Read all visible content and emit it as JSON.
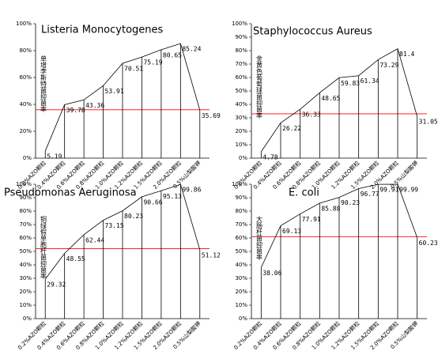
{
  "chart_data": [
    {
      "type": "line",
      "title": "Listeria Monocytogenes",
      "title_color": "#ff0000",
      "y_label": "单增李斯特菌抑菌率",
      "categories": [
        "0.2%AZO颗粒",
        "0.4%AZO颗粒",
        "0.6%AZO颗粒",
        "0.8%AZO颗粒",
        "1.0%AZO颗粒",
        "1.2%AZO颗粒",
        "1.5%AZO颗粒",
        "2.0%AZO颗粒",
        "0.5%山梨酸钾"
      ],
      "values": [
        5.19,
        39.78,
        43.36,
        53.91,
        70.51,
        75.19,
        80.65,
        85.24,
        35.69
      ],
      "color": "#000000",
      "reference_value": 36,
      "reference_color": "#ff0000",
      "ylim": [
        0,
        100
      ],
      "yticks": [
        {
          "value": 0,
          "label": "0%"
        },
        {
          "value": 20,
          "label": "20%"
        },
        {
          "value": 40,
          "label": "40%"
        },
        {
          "value": 60,
          "label": "60%"
        },
        {
          "value": 80,
          "label": "80%"
        },
        {
          "value": 100,
          "label": "100%"
        }
      ]
    },
    {
      "type": "line",
      "title": "Staphylococcus Aureus",
      "title_color": "#ff0000",
      "y_label": "金黄色葡萄球菌抑菌率",
      "categories": [
        "0.2%AZO颗粒",
        "0.4%AZO颗粒",
        "0.6%AZO颗粒",
        "0.8%AZO颗粒",
        "1.0%AZO颗粒",
        "1.2%AZO颗粒",
        "1.5%AZO颗粒",
        "2.0%AZO颗粒",
        "0.5%山梨酸钾"
      ],
      "values": [
        4.78,
        26.22,
        36.33,
        48.65,
        59.83,
        61.34,
        73.29,
        81.4,
        31.05
      ],
      "color": "#000000",
      "reference_value": 33,
      "reference_color": "#ff0000",
      "ylim": [
        0,
        100
      ],
      "yticks": [
        {
          "value": 0,
          "label": "0%"
        },
        {
          "value": 10,
          "label": "10%"
        },
        {
          "value": 20,
          "label": "20%"
        },
        {
          "value": 30,
          "label": "30%"
        },
        {
          "value": 40,
          "label": "40%"
        },
        {
          "value": 50,
          "label": "50%"
        },
        {
          "value": 60,
          "label": "60%"
        },
        {
          "value": 70,
          "label": "70%"
        },
        {
          "value": 80,
          "label": "80%"
        },
        {
          "value": 90,
          "label": "90%"
        },
        {
          "value": 100,
          "label": "100%"
        }
      ]
    },
    {
      "type": "line",
      "title": "Pseudomonas Aeruginosa",
      "title_color": "#ff0000",
      "y_label": "铜绿假单胞杆菌抑菌率",
      "categories": [
        "0.2%AZO颗粒",
        "0.4%AZO颗粒",
        "0.6%AZO颗粒",
        "0.8%AZO颗粒",
        "1.0%AZO颗粒",
        "1.2%AZO颗粒",
        "1.5%AZO颗粒",
        "2.0%AZO颗粒",
        "0.5%山梨酸钾"
      ],
      "values": [
        29.32,
        48.55,
        62.44,
        73.15,
        80.23,
        90.66,
        95.13,
        99.86,
        51.12
      ],
      "color": "#000000",
      "reference_value": 52,
      "reference_color": "#ff0000",
      "ylim": [
        0,
        100
      ],
      "yticks": [
        {
          "value": 0,
          "label": "0%"
        },
        {
          "value": 10,
          "label": "10%"
        },
        {
          "value": 20,
          "label": "20%"
        },
        {
          "value": 30,
          "label": "30%"
        },
        {
          "value": 40,
          "label": "40%"
        },
        {
          "value": 50,
          "label": "50%"
        },
        {
          "value": 60,
          "label": "60%"
        },
        {
          "value": 70,
          "label": "70%"
        },
        {
          "value": 80,
          "label": "80%"
        },
        {
          "value": 90,
          "label": "90%"
        },
        {
          "value": 100,
          "label": "100%"
        }
      ]
    },
    {
      "type": "line",
      "title": "E. coli",
      "title_color": "#ff0000",
      "y_label": "大肠杆菌抑菌率",
      "categories": [
        "0.2%AZO颗粒",
        "0.4%AZO颗粒",
        "0.6%AZO颗粒",
        "0.8%AZO颗粒",
        "1.0%AZO颗粒",
        "1.2%AZO颗粒",
        "1.5%AZO颗粒",
        "2.0%AZO颗粒",
        "0.5%山梨酸钾"
      ],
      "values": [
        38.06,
        69.13,
        77.91,
        85.88,
        90.23,
        96.77,
        99.91,
        99.99,
        60.23
      ],
      "color": "#000000",
      "reference_value": 61,
      "reference_color": "#ff0000",
      "ylim": [
        0,
        100
      ],
      "yticks": [
        {
          "value": 0,
          "label": "0%"
        },
        {
          "value": 10,
          "label": "10%"
        },
        {
          "value": 20,
          "label": "20%"
        },
        {
          "value": 30,
          "label": "30%"
        },
        {
          "value": 40,
          "label": "40%"
        },
        {
          "value": 50,
          "label": "50%"
        },
        {
          "value": 60,
          "label": "60%"
        },
        {
          "value": 70,
          "label": "70%"
        },
        {
          "value": 80,
          "label": "80%"
        },
        {
          "value": 90,
          "label": "90%"
        },
        {
          "value": 100,
          "label": "100%"
        }
      ]
    }
  ]
}
